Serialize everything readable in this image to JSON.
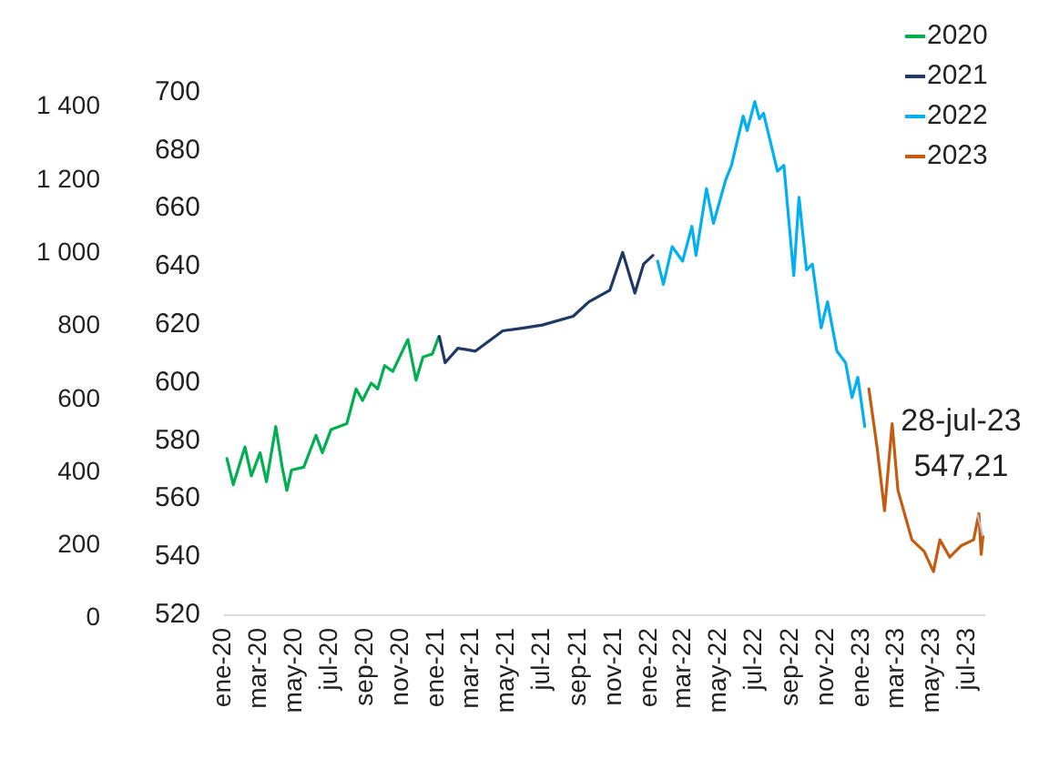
{
  "chart_data": {
    "type": "line",
    "series": [
      {
        "name": "2020",
        "color": "#00b050",
        "x": [
          "2020-01-06",
          "2020-01-17",
          "2020-02-06",
          "2020-02-17",
          "2020-03-03",
          "2020-03-14",
          "2020-03-30",
          "2020-04-10",
          "2020-04-18",
          "2020-04-26",
          "2020-05-17",
          "2020-06-07",
          "2020-06-18",
          "2020-07-03",
          "2020-07-30",
          "2020-08-15",
          "2020-08-26",
          "2020-09-10",
          "2020-09-21",
          "2020-10-03",
          "2020-10-17",
          "2020-11-12",
          "2020-11-26",
          "2020-12-08",
          "2020-12-24",
          "2021-01-04"
        ],
        "values": [
          574,
          565,
          578,
          568,
          576,
          566,
          585,
          571,
          563,
          570,
          571,
          582,
          576,
          584,
          586,
          598,
          594,
          600,
          598,
          606,
          604,
          615,
          601,
          609,
          610,
          616
        ]
      },
      {
        "name": "2021",
        "color": "#1f3864",
        "x": [
          "2021-01-05",
          "2021-01-15",
          "2021-02-06",
          "2021-03-08",
          "2021-04-24",
          "2021-05-30",
          "2021-07-01",
          "2021-08-23",
          "2021-09-19",
          "2021-10-25",
          "2021-11-16",
          "2021-12-07",
          "2021-12-22",
          "2022-01-07"
        ],
        "values": [
          616,
          607,
          612,
          611,
          618,
          619,
          620,
          623,
          628,
          632,
          645,
          631,
          641,
          644
        ]
      },
      {
        "name": "2022",
        "color": "#00b0f0",
        "x": [
          "2022-01-15",
          "2022-01-25",
          "2022-02-09",
          "2022-02-27",
          "2022-03-15",
          "2022-03-22",
          "2022-04-09",
          "2022-04-21",
          "2022-05-12",
          "2022-05-22",
          "2022-06-11",
          "2022-06-18",
          "2022-07-01",
          "2022-07-09",
          "2022-07-16",
          "2022-08-09",
          "2022-08-20",
          "2022-09-06",
          "2022-09-15",
          "2022-09-28",
          "2022-10-08",
          "2022-10-23",
          "2022-11-03",
          "2022-11-19",
          "2022-12-04",
          "2022-12-15",
          "2022-12-25",
          "2023-01-06"
        ],
        "values": [
          642,
          634,
          647,
          642,
          654,
          644,
          667,
          655,
          670,
          675,
          692,
          687,
          697,
          691,
          693,
          673,
          675,
          637,
          664,
          639,
          641,
          619,
          628,
          611,
          607,
          595,
          602,
          585
        ]
      },
      {
        "name": "2023",
        "color": "#c55a11",
        "x": [
          "2023-01-13",
          "2023-01-27",
          "2023-02-09",
          "2023-02-22",
          "2023-03-04",
          "2023-03-28",
          "2023-04-18",
          "2023-05-04",
          "2023-05-15",
          "2023-06-01",
          "2023-06-21",
          "2023-07-12",
          "2023-07-21",
          "2023-07-25",
          "2023-07-28"
        ],
        "values": [
          598,
          578,
          556,
          586,
          563,
          546,
          542,
          535,
          546,
          540,
          544,
          546,
          555,
          541,
          547.21
        ]
      }
    ],
    "xlim": [
      "2020-01-01",
      "2023-08-01"
    ],
    "xticks": [
      {
        "value": "2020-01",
        "label": "ene-20"
      },
      {
        "value": "2020-03",
        "label": "mar-20"
      },
      {
        "value": "2020-05",
        "label": "may-20"
      },
      {
        "value": "2020-07",
        "label": "jul-20"
      },
      {
        "value": "2020-09",
        "label": "sep-20"
      },
      {
        "value": "2020-11",
        "label": "nov-20"
      },
      {
        "value": "2021-01",
        "label": "ene-21"
      },
      {
        "value": "2021-03",
        "label": "mar-21"
      },
      {
        "value": "2021-05",
        "label": "may-21"
      },
      {
        "value": "2021-07",
        "label": "jul-21"
      },
      {
        "value": "2021-09",
        "label": "sep-21"
      },
      {
        "value": "2021-11",
        "label": "nov-21"
      },
      {
        "value": "2022-01",
        "label": "ene-22"
      },
      {
        "value": "2022-03",
        "label": "mar-22"
      },
      {
        "value": "2022-05",
        "label": "may-22"
      },
      {
        "value": "2022-07",
        "label": "jul-22"
      },
      {
        "value": "2022-09",
        "label": "sep-22"
      },
      {
        "value": "2022-11",
        "label": "nov-22"
      },
      {
        "value": "2023-01",
        "label": "ene-23"
      },
      {
        "value": "2023-03",
        "label": "mar-23"
      },
      {
        "value": "2023-05",
        "label": "may-23"
      },
      {
        "value": "2023-07",
        "label": "jul-23"
      }
    ],
    "ylim": [
      520,
      700
    ],
    "yticks": [
      520,
      540,
      560,
      580,
      600,
      620,
      640,
      660,
      680,
      700
    ],
    "y2lim": [
      0,
      1400
    ],
    "y2ticks": [
      0,
      200,
      400,
      600,
      800,
      {
        "value": 1000,
        "label": "1 000"
      },
      {
        "value": 1200,
        "label": "1 200"
      },
      {
        "value": 1400,
        "label": "1 400"
      }
    ],
    "annotations": [
      {
        "text": "28-jul-23\n547,21",
        "x": "2023-07-28",
        "y": 547.21
      }
    ],
    "legend": "top right",
    "grid": false,
    "line_style": "solid",
    "marker": "none"
  }
}
